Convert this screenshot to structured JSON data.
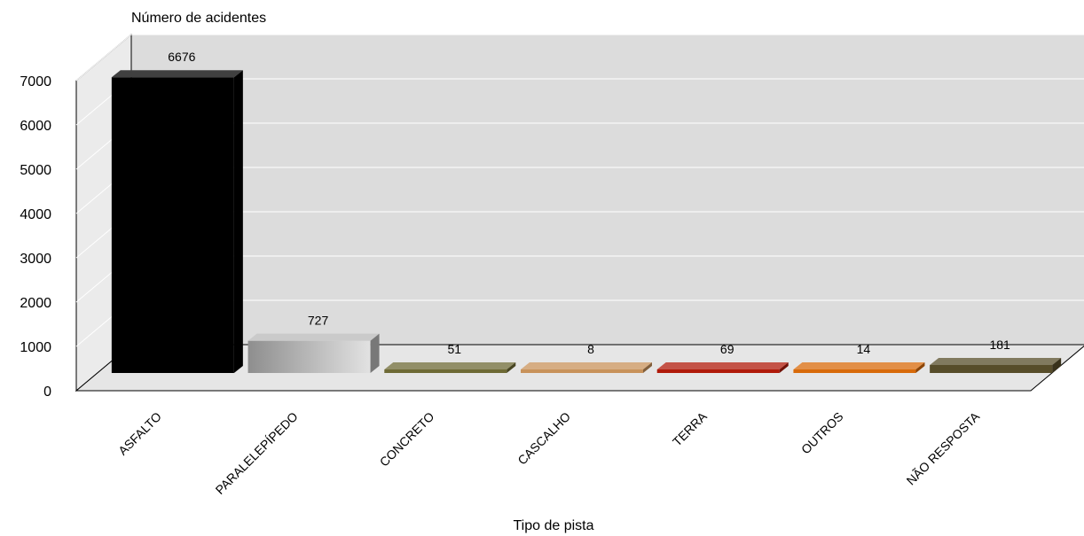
{
  "chart_data": {
    "type": "bar",
    "title": "",
    "ylabel": "Número de acidentes",
    "xlabel": "Tipo de pista",
    "categories": [
      "ASFALTO",
      "PARALELEPÍPEDO",
      "CONCRETO",
      "CASCALHO",
      "TERRA",
      "OUTROS",
      "NÃO RESPOSTA"
    ],
    "values": [
      6676,
      727,
      51,
      8,
      69,
      14,
      181
    ],
    "data_labels": [
      "6676",
      "727",
      "51",
      "8",
      "69",
      "14",
      "181"
    ],
    "ylim": [
      0,
      7000
    ],
    "yticks": [
      "0",
      "1000",
      "2000",
      "3000",
      "4000",
      "5000",
      "6000",
      "7000"
    ],
    "bar_colors": [
      "#000000",
      "#b8b8b8",
      "#6e6a35",
      "#c8925a",
      "#b01a0a",
      "#d86a0a",
      "#574d2a"
    ],
    "grid": true,
    "legend": "none"
  }
}
